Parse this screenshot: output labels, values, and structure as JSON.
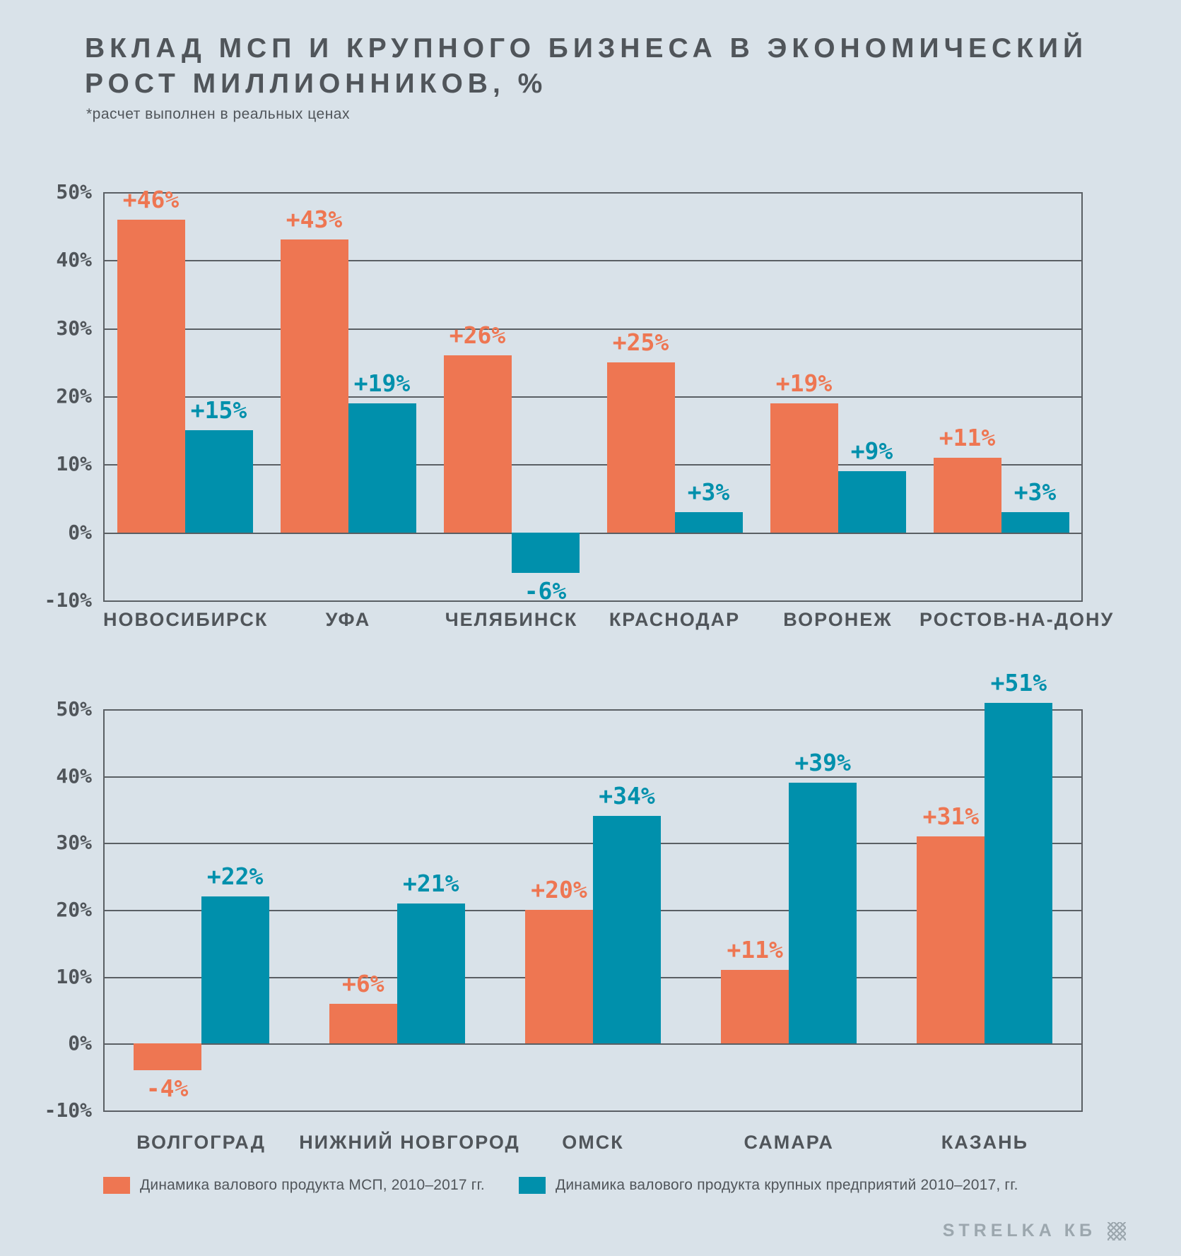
{
  "header": {
    "title_line1": "ВКЛАД МСП И КРУПНОГО БИЗНЕСА В ЭКОНОМИЧЕСКИЙ",
    "title_line2": "РОСТ МИЛЛИОННИКОВ, %",
    "subtitle": "*расчет выполнен в реальных ценах"
  },
  "colors": {
    "smb": "#ee7652",
    "large": "#0090ac",
    "background": "#d9e2e9",
    "grid": "#5a5f64",
    "text": "#50555a",
    "footer_text": "#9ca7ae"
  },
  "legend": {
    "items": [
      {
        "label": "Динамика валового продукта МСП, 2010–2017 гг.",
        "color_key": "smb"
      },
      {
        "label": "Динамика валового продукта крупных предприятий 2010–2017, гг.",
        "color_key": "large"
      }
    ]
  },
  "footer": {
    "brand": "STRELKA КБ"
  },
  "chart_data": [
    {
      "type": "bar",
      "categories": [
        "НОВОСИБИРСК",
        "УФА",
        "ЧЕЛЯБИНСК",
        "КРАСНОДАР",
        "ВОРОНЕЖ",
        "РОСТОВ-НА-ДОНУ"
      ],
      "series": [
        {
          "name": "Динамика валового продукта МСП, 2010–2017 гг.",
          "color_key": "smb",
          "values": [
            46,
            43,
            26,
            25,
            19,
            11
          ],
          "labels": [
            "+46%",
            "+43%",
            "+26%",
            "+25%",
            "+19%",
            "+11%"
          ]
        },
        {
          "name": "Динамика валового продукта крупных предприятий 2010–2017, гг.",
          "color_key": "large",
          "values": [
            15,
            19,
            -6,
            3,
            9,
            3
          ],
          "labels": [
            "+15%",
            "+19%",
            "-6%",
            "+3%",
            "+9%",
            "+3%"
          ]
        }
      ],
      "ylim": [
        -10,
        50
      ],
      "ytick_step": 10,
      "ytick_labels": [
        "50%",
        "40%",
        "30%",
        "20%",
        "10%",
        "0%",
        "-10%"
      ],
      "grid": true,
      "legend_position": "bottom"
    },
    {
      "type": "bar",
      "categories": [
        "ВОЛГОГРАД",
        "НИЖНИЙ НОВГОРОД",
        "ОМСК",
        "САМАРА",
        "КАЗАНЬ"
      ],
      "series": [
        {
          "name": "Динамика валового продукта МСП, 2010–2017 гг.",
          "color_key": "smb",
          "values": [
            -4,
            6,
            20,
            11,
            31
          ],
          "labels": [
            "-4%",
            "+6%",
            "+20%",
            "+11%",
            "+31%"
          ]
        },
        {
          "name": "Динамика валового продукта крупных предприятий 2010–2017, гг.",
          "color_key": "large",
          "values": [
            22,
            21,
            34,
            39,
            51
          ],
          "labels": [
            "+22%",
            "+21%",
            "+34%",
            "+39%",
            "+51%"
          ]
        }
      ],
      "ylim": [
        -10,
        50
      ],
      "ytick_step": 10,
      "ytick_labels": [
        "50%",
        "40%",
        "30%",
        "20%",
        "10%",
        "0%",
        "-10%"
      ],
      "grid": true,
      "legend_position": "bottom"
    }
  ]
}
